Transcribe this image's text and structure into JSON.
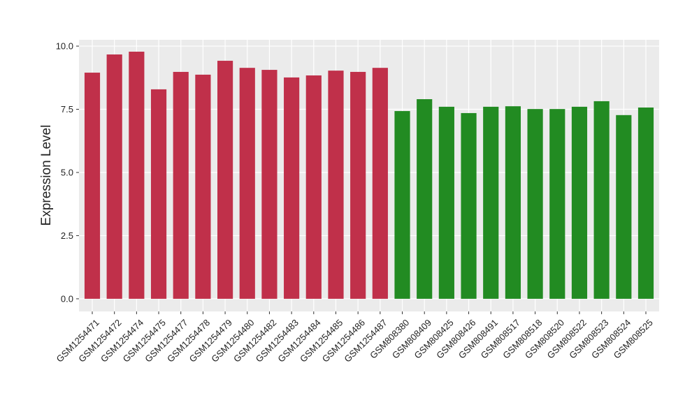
{
  "chart_data": {
    "type": "bar",
    "y_axis_label": "Expression Level",
    "categories": [
      "GSM1254471",
      "GSM1254472",
      "GSM1254474",
      "GSM1254475",
      "GSM1254477",
      "GSM1254478",
      "GSM1254479",
      "GSM1254480",
      "GSM1254482",
      "GSM1254483",
      "GSM1254484",
      "GSM1254485",
      "GSM1254486",
      "GSM1254487",
      "GSM808380",
      "GSM808409",
      "GSM808425",
      "GSM808426",
      "GSM808491",
      "GSM808517",
      "GSM808518",
      "GSM808520",
      "GSM808522",
      "GSM808523",
      "GSM808524",
      "GSM808525"
    ],
    "values": [
      8.95,
      9.67,
      9.78,
      8.29,
      8.98,
      8.87,
      9.42,
      9.14,
      9.06,
      8.76,
      8.84,
      9.03,
      8.98,
      9.14,
      7.43,
      7.9,
      7.6,
      7.35,
      7.6,
      7.62,
      7.51,
      7.51,
      7.6,
      7.82,
      7.27,
      7.57
    ],
    "colors": [
      "#c0304a",
      "#c0304a",
      "#c0304a",
      "#c0304a",
      "#c0304a",
      "#c0304a",
      "#c0304a",
      "#c0304a",
      "#c0304a",
      "#c0304a",
      "#c0304a",
      "#c0304a",
      "#c0304a",
      "#c0304a",
      "#228b22",
      "#228b22",
      "#228b22",
      "#228b22",
      "#228b22",
      "#228b22",
      "#228b22",
      "#228b22",
      "#228b22",
      "#228b22",
      "#228b22",
      "#228b22"
    ],
    "ylim": [
      -0.5,
      10.25
    ],
    "yticks": [
      {
        "value": 0,
        "label": "0.0"
      },
      2.5,
      {
        "value": 5,
        "label": "5.0"
      },
      7.5,
      {
        "value": 10,
        "label": "10.0"
      }
    ],
    "grid": true
  }
}
